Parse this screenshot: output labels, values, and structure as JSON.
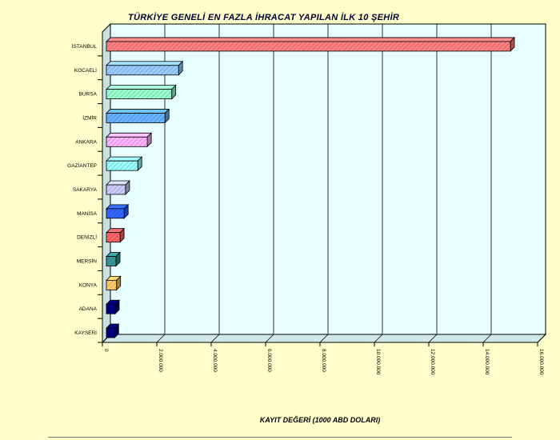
{
  "chart_data": {
    "type": "bar",
    "orientation": "horizontal",
    "style": "3d",
    "title": "TÜRKİYE GENELİ EN FAZLA İHRACAT YAPILAN İLK 10 ŞEHİR",
    "xlabel": "KAYIT DEĞERİ (1000 ABD DOLARI)",
    "ylabel": "",
    "xlim": [
      0,
      16000000
    ],
    "xticks": [
      0,
      2000000,
      4000000,
      6000000,
      8000000,
      10000000,
      12000000,
      14000000,
      16000000
    ],
    "xtick_labels": [
      "0",
      "2.000.000",
      "4.000.000",
      "6.000.000",
      "8.000.000",
      "10.000.000",
      "12.000.000",
      "14.000.000",
      "16.000.000"
    ],
    "grid": true,
    "legend": "none",
    "categories": [
      "İSTANBUL",
      "KOCAELİ",
      "BURSA",
      "İZMİR",
      "ANKARA",
      "GAZİANTEP",
      "SAKARYA",
      "MANİSA",
      "DENİZLİ",
      "MERSİN",
      "KONYA",
      "ADANA",
      "KAYSERİ"
    ],
    "values": [
      15000000,
      2800000,
      2550000,
      2300000,
      1650000,
      1300000,
      850000,
      800000,
      650000,
      500000,
      520000,
      470000,
      450000
    ],
    "colors": [
      "#ff8080",
      "#99ccff",
      "#99ffcc",
      "#66b3ff",
      "#ffb3ff",
      "#99ffff",
      "#ccccff",
      "#3366ff",
      "#ff6666",
      "#339999",
      "#ffcc66",
      "#000080",
      "#000080"
    ]
  }
}
